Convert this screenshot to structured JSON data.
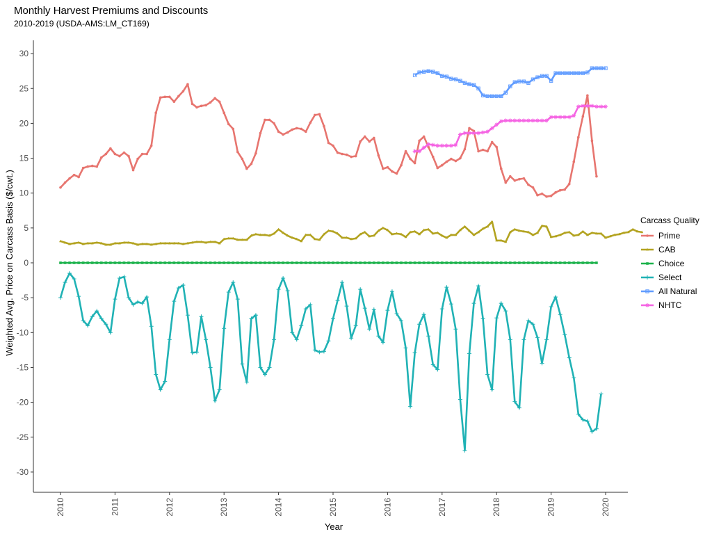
{
  "chart_data": {
    "type": "line",
    "title": "Monthly Harvest Premiums and Discounts",
    "subtitle": "2010-2019 (USDA-AMS:LM_CT169)",
    "xlabel": "Year",
    "ylabel": "Weighted Avg. Price on Carcass Basis ($/cwt.)",
    "xlim": [
      2010,
      2020
    ],
    "ylim": [
      -30,
      30
    ],
    "x_ticks": [
      "2010",
      "2011",
      "2012",
      "2013",
      "2014",
      "2015",
      "2016",
      "2017",
      "2018",
      "2019",
      "2020"
    ],
    "y_ticks": [
      "30",
      "25",
      "20",
      "15",
      "10",
      "5",
      "0",
      "-5",
      "-10",
      "-15",
      "-20",
      "-25",
      "-30"
    ],
    "grid": false,
    "legend": {
      "title": "Carcass Quality",
      "position": "right"
    },
    "x_start": "2010-01",
    "x_step": "monthly",
    "series": [
      {
        "name": "Prime",
        "color": "#E7756F",
        "marker": "circle",
        "start_month_index": 0,
        "values": [
          10.8,
          11.5,
          12.1,
          12.6,
          12.3,
          13.6,
          13.8,
          13.9,
          13.8,
          15.1,
          15.6,
          16.4,
          15.6,
          15.3,
          15.8,
          15.3,
          13.3,
          14.9,
          15.6,
          15.6,
          16.8,
          21.5,
          23.7,
          23.8,
          23.8,
          23.1,
          23.9,
          24.6,
          25.6,
          22.8,
          22.3,
          22.5,
          22.6,
          23.0,
          23.6,
          23.1,
          21.5,
          19.9,
          19.2,
          15.9,
          14.9,
          13.5,
          14.2,
          15.7,
          18.6,
          20.5,
          20.5,
          20.0,
          18.8,
          18.4,
          18.7,
          19.1,
          19.3,
          19.2,
          18.8,
          20.1,
          21.2,
          21.3,
          19.6,
          17.2,
          16.8,
          15.8,
          15.6,
          15.5,
          15.2,
          15.3,
          17.4,
          18.1,
          17.4,
          17.9,
          15.4,
          13.5,
          13.7,
          13.1,
          12.8,
          14.0,
          16.0,
          14.9,
          14.3,
          17.5,
          18.1,
          16.6,
          15.2,
          13.6,
          14.0,
          14.5,
          14.9,
          14.6,
          15.0,
          16.3,
          19.3,
          18.9,
          16.0,
          16.2,
          16.0,
          17.3,
          16.6,
          13.5,
          11.5,
          12.4,
          11.8,
          12.0,
          12.1,
          11.2,
          10.8,
          9.7,
          9.9,
          9.5,
          9.6,
          10.1,
          10.4,
          10.5,
          11.3,
          14.5,
          18.0,
          21.0,
          24.0,
          17.5,
          12.4
        ]
      },
      {
        "name": "CAB",
        "color": "#B3A320",
        "marker": "triangle",
        "start_month_index": 0,
        "values": [
          3.1,
          2.9,
          2.7,
          2.8,
          2.9,
          2.7,
          2.8,
          2.8,
          2.9,
          2.8,
          2.6,
          2.6,
          2.8,
          2.8,
          2.9,
          2.9,
          2.8,
          2.6,
          2.7,
          2.7,
          2.6,
          2.7,
          2.8,
          2.8,
          2.8,
          2.8,
          2.8,
          2.7,
          2.8,
          2.9,
          3.0,
          3.0,
          2.9,
          3.0,
          3.0,
          2.8,
          3.4,
          3.5,
          3.5,
          3.3,
          3.3,
          3.3,
          3.9,
          4.1,
          4.0,
          4.0,
          3.9,
          4.2,
          4.8,
          4.3,
          3.9,
          3.6,
          3.4,
          3.1,
          4.0,
          4.0,
          3.4,
          3.3,
          4.1,
          4.6,
          4.5,
          4.2,
          3.6,
          3.6,
          3.4,
          3.5,
          4.1,
          4.4,
          3.8,
          3.9,
          4.6,
          5.0,
          4.7,
          4.1,
          4.2,
          4.1,
          3.7,
          4.4,
          4.5,
          4.1,
          4.7,
          4.8,
          4.2,
          4.3,
          3.9,
          3.6,
          4.0,
          4.0,
          4.7,
          5.2,
          4.6,
          4.0,
          4.4,
          4.9,
          5.2,
          5.9,
          3.2,
          3.2,
          3.0,
          4.4,
          4.8,
          4.6,
          4.5,
          4.4,
          4.0,
          4.3,
          5.3,
          5.2,
          3.7,
          3.8,
          4.0,
          4.3,
          4.4,
          3.9,
          4.0,
          4.5,
          4.0,
          4.3,
          4.2,
          4.2,
          3.6,
          3.8,
          4.0,
          4.1,
          4.3,
          4.4,
          4.8,
          4.5,
          4.4
        ]
      },
      {
        "name": "Choice",
        "color": "#1BB24B",
        "marker": "square",
        "start_month_index": 0,
        "values": [
          0,
          0,
          0,
          0,
          0,
          0,
          0,
          0,
          0,
          0,
          0,
          0,
          0,
          0,
          0,
          0,
          0,
          0,
          0,
          0,
          0,
          0,
          0,
          0,
          0,
          0,
          0,
          0,
          0,
          0,
          0,
          0,
          0,
          0,
          0,
          0,
          0,
          0,
          0,
          0,
          0,
          0,
          0,
          0,
          0,
          0,
          0,
          0,
          0,
          0,
          0,
          0,
          0,
          0,
          0,
          0,
          0,
          0,
          0,
          0,
          0,
          0,
          0,
          0,
          0,
          0,
          0,
          0,
          0,
          0,
          0,
          0,
          0,
          0,
          0,
          0,
          0,
          0,
          0,
          0,
          0,
          0,
          0,
          0,
          0,
          0,
          0,
          0,
          0,
          0,
          0,
          0,
          0,
          0,
          0,
          0,
          0,
          0,
          0,
          0,
          0,
          0,
          0,
          0,
          0,
          0,
          0,
          0,
          0,
          0,
          0,
          0,
          0,
          0,
          0,
          0,
          0,
          0,
          0
        ]
      },
      {
        "name": "Select",
        "color": "#20B2B5",
        "marker": "plus",
        "start_month_index": 0,
        "values": [
          -5.0,
          -2.8,
          -1.5,
          -2.3,
          -4.8,
          -8.3,
          -9.0,
          -7.7,
          -6.9,
          -8.0,
          -8.8,
          -10.0,
          -5.2,
          -2.2,
          -2.0,
          -5.0,
          -6.0,
          -5.6,
          -5.8,
          -4.9,
          -9.1,
          -16.0,
          -18.2,
          -17.0,
          -11.0,
          -5.5,
          -3.6,
          -3.2,
          -7.5,
          -12.9,
          -12.8,
          -7.7,
          -11.0,
          -15.0,
          -19.8,
          -18.2,
          -9.4,
          -4.2,
          -2.8,
          -5.2,
          -14.5,
          -17.1,
          -8.0,
          -7.5,
          -15.0,
          -16.0,
          -15.0,
          -11.0,
          -3.8,
          -2.2,
          -4.0,
          -10.0,
          -11.0,
          -9.0,
          -6.6,
          -6.0,
          -12.5,
          -12.8,
          -12.7,
          -11.2,
          -8.0,
          -5.4,
          -2.8,
          -6.2,
          -10.8,
          -9.0,
          -3.8,
          -6.5,
          -9.5,
          -6.7,
          -10.5,
          -11.4,
          -6.8,
          -4.1,
          -7.3,
          -8.3,
          -12.2,
          -20.6,
          -12.9,
          -8.8,
          -7.4,
          -10.5,
          -14.6,
          -15.3,
          -6.6,
          -3.5,
          -5.9,
          -9.5,
          -19.6,
          -26.9,
          -13.0,
          -5.8,
          -3.3,
          -8.0,
          -16.0,
          -18.2,
          -7.9,
          -5.8,
          -6.9,
          -11.0,
          -19.9,
          -20.8,
          -11.0,
          -8.3,
          -8.8,
          -10.7,
          -14.4,
          -11.0,
          -6.3,
          -4.9,
          -7.4,
          -10.3,
          -13.6,
          -16.5,
          -21.7,
          -22.5,
          -22.7,
          -24.2,
          -23.8,
          -18.8
        ]
      },
      {
        "name": "All Natural",
        "color": "#619CFF",
        "marker": "square-open",
        "start_month_index": 78,
        "values": [
          26.9,
          27.3,
          27.4,
          27.5,
          27.4,
          27.2,
          26.8,
          26.7,
          26.4,
          26.3,
          26.1,
          25.8,
          25.6,
          25.5,
          25.0,
          24.0,
          23.9,
          23.9,
          23.9,
          23.9,
          24.4,
          25.3,
          25.9,
          26.0,
          26.0,
          25.8,
          26.3,
          26.6,
          26.8,
          26.8,
          26.1,
          27.2,
          27.2,
          27.2,
          27.2,
          27.2,
          27.2,
          27.2,
          27.3,
          27.9,
          27.9,
          27.9,
          27.9
        ]
      },
      {
        "name": "NHTC",
        "color": "#F564E3",
        "marker": "star",
        "start_month_index": 78,
        "values": [
          16.0,
          16.0,
          16.5,
          17.0,
          16.9,
          16.8,
          16.8,
          16.8,
          16.8,
          16.9,
          18.4,
          18.6,
          18.6,
          18.6,
          18.6,
          18.7,
          18.8,
          19.3,
          19.8,
          20.3,
          20.4,
          20.4,
          20.4,
          20.4,
          20.4,
          20.4,
          20.4,
          20.4,
          20.4,
          20.4,
          20.9,
          20.9,
          20.9,
          20.9,
          20.9,
          21.1,
          22.4,
          22.5,
          22.5,
          22.5,
          22.4,
          22.4,
          22.4
        ]
      }
    ]
  }
}
